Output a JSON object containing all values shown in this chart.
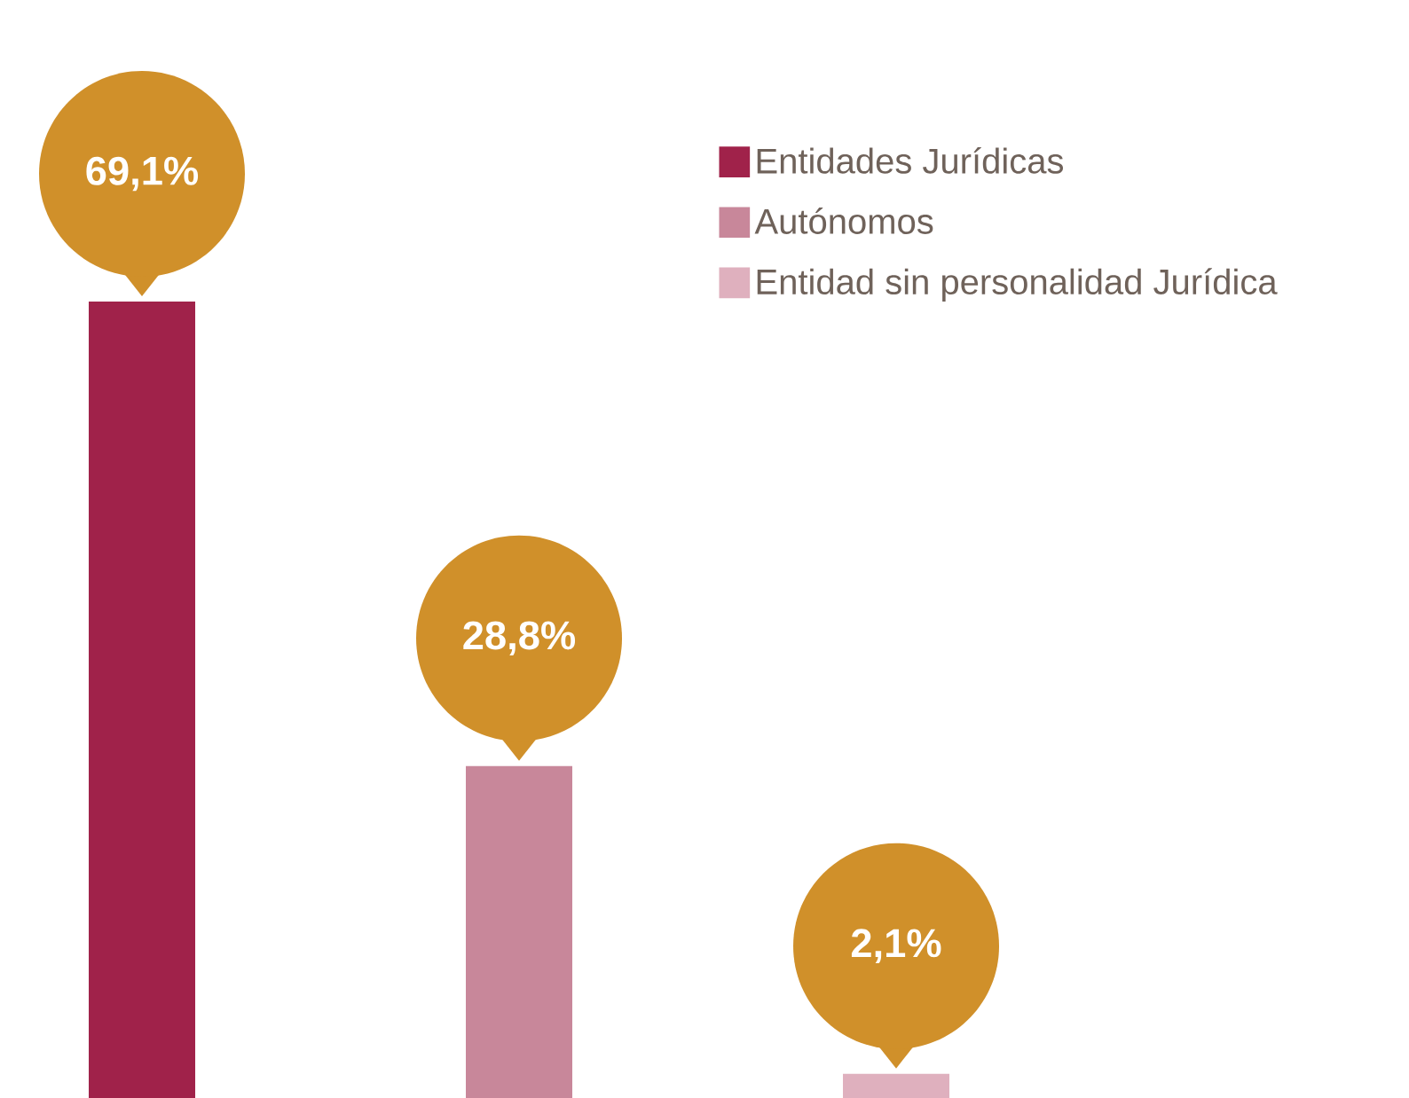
{
  "chart_data": {
    "type": "bar",
    "categories": [
      null,
      null,
      null
    ],
    "stacked": true,
    "series": [
      {
        "name": "Entidades Jurídicas",
        "color": "#a0224a",
        "values": [
          69.1,
          null,
          null
        ],
        "value_labels": [
          "69,1%",
          null,
          null
        ]
      },
      {
        "name": "Autónomos",
        "color": "#c8879a",
        "values": [
          null,
          28.8,
          null
        ],
        "value_labels": [
          null,
          "28,8%",
          null
        ]
      },
      {
        "name": "Entidad sin personalidad Jurídica",
        "color": "#dfb0be",
        "values": [
          null,
          null,
          2.1
        ],
        "value_labels": [
          null,
          null,
          "2,1%"
        ]
      }
    ],
    "legend": "top right"
  }
}
